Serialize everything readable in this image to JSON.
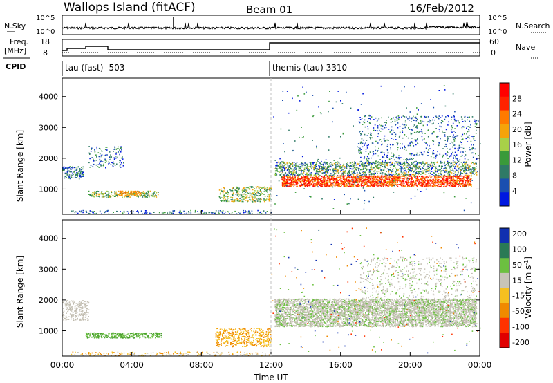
{
  "header": {
    "station": "Wallops Island (fitACF)",
    "beam": "Beam 01",
    "date": "16/Feb/2012"
  },
  "top_panels": {
    "nsky_label": "N.Sky",
    "nsearch_label": "N.Search",
    "nsky_ticks": [
      "10^5",
      "10^0"
    ],
    "nsky_ticks_right": [
      "10^5",
      "10^0"
    ],
    "freq_label_1": "Freq.",
    "freq_label_2": "[MHz]",
    "freq_ticks": [
      "18",
      "8"
    ],
    "nave_label": "Nave",
    "nave_ticks": [
      "60",
      "0"
    ],
    "cpid_label": "CPID",
    "cpid_segments": [
      {
        "name": "tau (fast) -503",
        "start_hour": 0
      },
      {
        "name": "themis (tau) 3310",
        "start_hour": 12
      }
    ]
  },
  "chart_data": [
    {
      "type": "heatmap",
      "title": "",
      "xlabel": "",
      "ylabel": "Slant Range [km]",
      "xlim": [
        0,
        24
      ],
      "ylim": [
        180,
        4600
      ],
      "yticks": [
        "1000",
        "2000",
        "3000",
        "4000"
      ],
      "colorbar_label": "Power [dB]",
      "colorbar_ticks": [
        "4",
        "8",
        "12",
        "16",
        "20",
        "24",
        "28"
      ],
      "colors": [
        "#0018e0",
        "#1a4fb0",
        "#2f7a66",
        "#3a9a3a",
        "#a8d048",
        "#f5a30a",
        "#ff7a00",
        "#ff2200",
        "#ff0000"
      ]
    },
    {
      "type": "heatmap",
      "title": "",
      "xlabel": "Time UT",
      "ylabel": "Slant Range [km]",
      "xlim": [
        0,
        24
      ],
      "ylim": [
        180,
        4600
      ],
      "yticks": [
        "1000",
        "2000",
        "3000",
        "4000"
      ],
      "xticks": [
        "00:00",
        "04:00",
        "08:00",
        "12:00",
        "16:00",
        "20:00",
        "00:00"
      ],
      "colorbar_label": "Velocity [m s^-1]",
      "colorbar_ticks": [
        "200",
        "100",
        "50",
        "15",
        "-15",
        "-50",
        "-100",
        "-200"
      ],
      "colors": [
        "#1030b0",
        "#2a7a55",
        "#6cc040",
        "#c8c4b8",
        "#f5c020",
        "#f08a00",
        "#ff3300",
        "#e00000"
      ]
    }
  ]
}
